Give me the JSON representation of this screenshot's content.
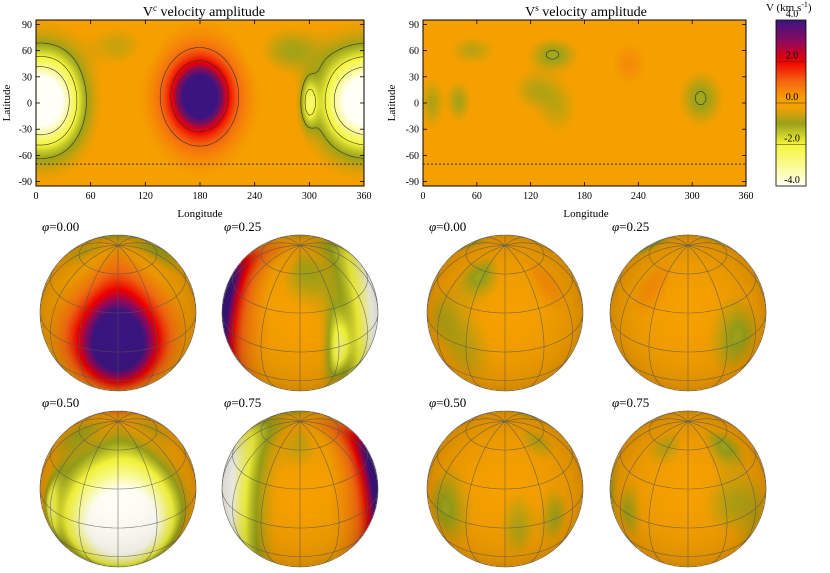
{
  "chart_data": {
    "type": "heatmap",
    "colors": {
      "background": "#f5a000",
      "violet": "#4a0e8e",
      "red": "#e00000",
      "green": "#9aa21a",
      "yellow": "#f7f740",
      "pale": "#fcfcc8",
      "contour": "#333333"
    },
    "colorbar": {
      "title_main": "V (km s",
      "title_sup": "-1",
      "title_close": ")",
      "range": [
        -4.0,
        4.0
      ],
      "ticks": [
        "4.0",
        "2.0",
        "0.0",
        "-2.0",
        "-4.0"
      ],
      "stops": [
        {
          "v": 4.0,
          "color": "#3a1580"
        },
        {
          "v": 3.0,
          "color": "#8a0a60"
        },
        {
          "v": 2.0,
          "color": "#f00000"
        },
        {
          "v": 1.0,
          "color": "#f56a10"
        },
        {
          "v": 0.2,
          "color": "#f5a000"
        },
        {
          "v": -0.2,
          "color": "#f5a000"
        },
        {
          "v": -1.0,
          "color": "#9aa21a"
        },
        {
          "v": -2.0,
          "color": "#f5f53a"
        },
        {
          "v": -3.0,
          "color": "#fafa90"
        },
        {
          "v": -4.0,
          "color": "#fffff5"
        }
      ]
    },
    "maps": [
      {
        "id": "vc",
        "title_main": "V",
        "title_sup": "c",
        "title_rest": " velocity amplitude",
        "xlabel": "Longitude",
        "ylabel": "Latitude",
        "xlim": [
          0,
          360
        ],
        "ylim": [
          -95,
          95
        ],
        "xticks": [
          "0",
          "60",
          "120",
          "180",
          "240",
          "300",
          "360"
        ],
        "yticks": [
          "90",
          "60",
          "30",
          "0",
          "-30",
          "-60",
          "-90"
        ],
        "visibility_limit_lat": -70,
        "features": [
          {
            "lon": 180,
            "lat": 8,
            "value": 4.0,
            "sigma_lon": 16,
            "sigma_lat": 20
          },
          {
            "lon": 180,
            "lat": 6,
            "value": 2.5,
            "sigma_lon": 30,
            "sigma_lat": 40
          },
          {
            "lon": 20,
            "lat": 2,
            "value": -3.6,
            "sigma_lon": 22,
            "sigma_lat": 36
          },
          {
            "lon": 345,
            "lat": 2,
            "value": -3.6,
            "sigma_lon": 24,
            "sigma_lat": 36
          },
          {
            "lon": 300,
            "lat": 0,
            "value": -2.0,
            "sigma_lon": 6,
            "sigma_lat": 18
          },
          {
            "lon": 280,
            "lat": 60,
            "value": -0.9,
            "sigma_lon": 22,
            "sigma_lat": 16
          },
          {
            "lon": 90,
            "lat": 65,
            "value": -0.6,
            "sigma_lon": 20,
            "sigma_lat": 14
          }
        ]
      },
      {
        "id": "vs",
        "title_main": "V",
        "title_sup": "s",
        "title_rest": " velocity amplitude",
        "xlabel": "Longitude",
        "ylabel": "Latitude",
        "xlim": [
          0,
          360
        ],
        "ylim": [
          -95,
          95
        ],
        "xticks": [
          "0",
          "60",
          "120",
          "180",
          "240",
          "300",
          "360"
        ],
        "yticks": [
          "90",
          "60",
          "30",
          "0",
          "-30",
          "-60",
          "-90"
        ],
        "visibility_limit_lat": -70,
        "features": [
          {
            "lon": 310,
            "lat": 5,
            "value": -1.1,
            "sigma_lon": 14,
            "sigma_lat": 18
          },
          {
            "lon": 145,
            "lat": 55,
            "value": -1.1,
            "sigma_lon": 16,
            "sigma_lat": 11
          },
          {
            "lon": 125,
            "lat": 15,
            "value": -0.7,
            "sigma_lon": 15,
            "sigma_lat": 14
          },
          {
            "lon": 150,
            "lat": -5,
            "value": -0.6,
            "sigma_lon": 14,
            "sigma_lat": 20
          },
          {
            "lon": 40,
            "lat": 2,
            "value": -0.9,
            "sigma_lon": 8,
            "sigma_lat": 14
          },
          {
            "lon": 10,
            "lat": 0,
            "value": -0.8,
            "sigma_lon": 8,
            "sigma_lat": 18
          },
          {
            "lon": 55,
            "lat": 60,
            "value": -0.7,
            "sigma_lon": 16,
            "sigma_lat": 10
          },
          {
            "lon": 230,
            "lat": 45,
            "value": 0.5,
            "sigma_lon": 14,
            "sigma_lat": 18
          }
        ]
      }
    ],
    "spheres": [
      {
        "map": 0,
        "phase": 0.0,
        "label": "=0.00"
      },
      {
        "map": 0,
        "phase": 0.25,
        "label": "=0.25"
      },
      {
        "map": 1,
        "phase": 0.0,
        "label": "=0.00"
      },
      {
        "map": 1,
        "phase": 0.25,
        "label": "=0.25"
      },
      {
        "map": 0,
        "phase": 0.5,
        "label": "=0.50"
      },
      {
        "map": 0,
        "phase": 0.75,
        "label": "=0.75"
      },
      {
        "map": 1,
        "phase": 0.5,
        "label": "=0.50"
      },
      {
        "map": 1,
        "phase": 0.75,
        "label": "=0.75"
      }
    ],
    "phase_symbol": "φ",
    "inclination_deg": 60
  }
}
